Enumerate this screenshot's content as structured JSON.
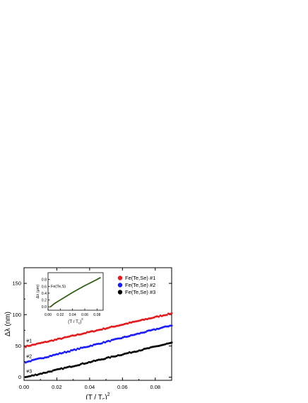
{
  "chart_data": [
    {
      "type": "scatter",
      "xlabel": "(T / T",
      "xlabel_sub": "c",
      "xlabel_tail": ")",
      "xlabel_sup": "2",
      "ylabel": "Δλ (nm)",
      "xlim": [
        0,
        0.09
      ],
      "ylim": [
        -5,
        175
      ],
      "xticks": [
        "0.00",
        "0.02",
        "0.04",
        "0.06",
        "0.08"
      ],
      "yticks": [
        "0",
        "50",
        "100",
        "150"
      ],
      "legend_position": "top-right",
      "series": [
        {
          "name": "Fe(Te,Se) #1",
          "label": "#1",
          "color": "#e41a1c",
          "x": [
            0.001,
            0.09
          ],
          "y": [
            49,
            102
          ]
        },
        {
          "name": "Fe(Te,Se) #2",
          "label": "#2",
          "color": "#1a1aff",
          "x": [
            0.001,
            0.09
          ],
          "y": [
            24,
            83
          ]
        },
        {
          "name": "Fe(Te,Se) #3",
          "label": "#3",
          "color": "#000000",
          "x": [
            0.001,
            0.09
          ],
          "y": [
            0,
            55
          ]
        }
      ]
    },
    {
      "type": "line",
      "annotation": "Fe(Te,S)",
      "xlabel": "(T / T",
      "xlabel_sub": "c",
      "xlabel_tail": ")",
      "xlabel_sup": "2",
      "ylabel": "Δλ (μm)",
      "xlim": [
        0,
        0.09
      ],
      "ylim": [
        -0.1,
        1.0
      ],
      "xticks": [
        "0.00",
        "0.02",
        "0.04",
        "0.06",
        "0.08"
      ],
      "yticks": [
        "0.0",
        "0.2",
        "0.4",
        "0.6",
        "0.8"
      ],
      "series": [
        {
          "color": "#3a6b14",
          "x": [
            0.004,
            0.01,
            0.02,
            0.03,
            0.04,
            0.05,
            0.06,
            0.07,
            0.08,
            0.086
          ],
          "y": [
            0.0,
            0.09,
            0.2,
            0.31,
            0.42,
            0.52,
            0.62,
            0.71,
            0.8,
            0.86
          ]
        }
      ]
    }
  ]
}
